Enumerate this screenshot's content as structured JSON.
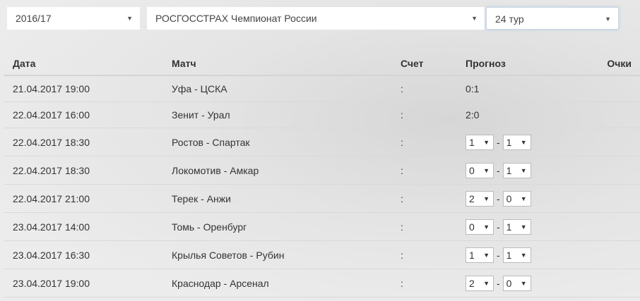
{
  "filters": {
    "season": "2016/17",
    "tournament": "РОСГОССТРАХ Чемпионат России",
    "round": "24 тур"
  },
  "headers": {
    "date": "Дата",
    "match": "Матч",
    "score": "Счет",
    "prediction": "Прогноз",
    "points": "Очки"
  },
  "rows": [
    {
      "date": "21.04.2017 19:00",
      "match": "Уфа - ЦСКА",
      "score": ":",
      "prediction": "0:1"
    },
    {
      "date": "22.04.2017 16:00",
      "match": "Зенит - Урал",
      "score": ":",
      "prediction": "2:0"
    },
    {
      "date": "22.04.2017 18:30",
      "match": "Ростов - Спартак",
      "score": ":",
      "home": "1",
      "away": "1"
    },
    {
      "date": "22.04.2017 18:30",
      "match": "Локомотив - Амкар",
      "score": ":",
      "home": "0",
      "away": "1"
    },
    {
      "date": "22.04.2017 21:00",
      "match": "Терек - Анжи",
      "score": ":",
      "home": "2",
      "away": "0"
    },
    {
      "date": "23.04.2017 14:00",
      "match": "Томь - Оренбург",
      "score": ":",
      "home": "0",
      "away": "1"
    },
    {
      "date": "23.04.2017 16:30",
      "match": "Крылья Советов - Рубин",
      "score": ":",
      "home": "1",
      "away": "1"
    },
    {
      "date": "23.04.2017 19:00",
      "match": "Краснодар - Арсенал",
      "score": ":",
      "home": "2",
      "away": "0"
    }
  ],
  "dash": "-"
}
